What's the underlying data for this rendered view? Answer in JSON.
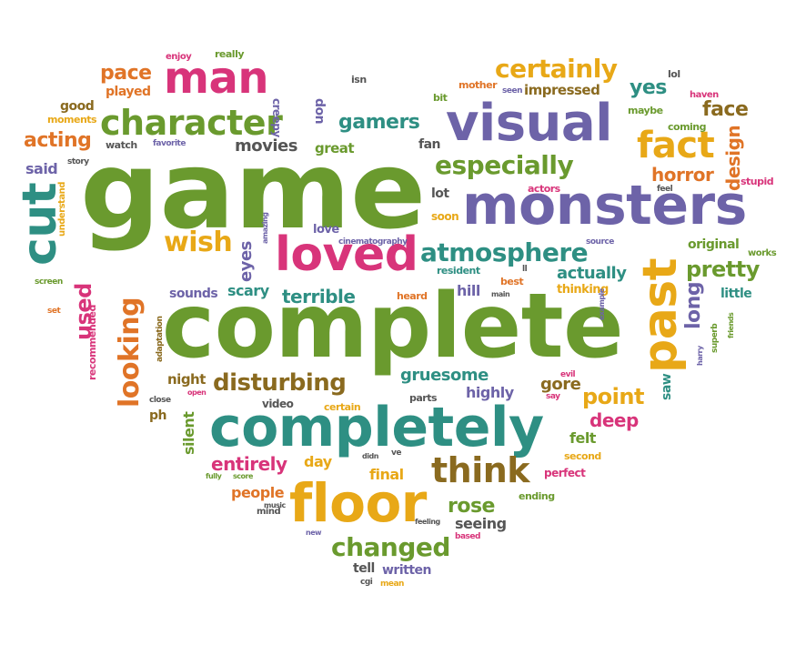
{
  "colors": {
    "green": "#6a9a2e",
    "purple": "#6d63a8",
    "teal": "#2e8f83",
    "magenta": "#d8347a",
    "orange": "#e07427",
    "yellow": "#e8a817",
    "brown": "#8a6a1f",
    "gray": "#555555"
  },
  "words": [
    {
      "text": "game",
      "color": "green"
    },
    {
      "text": "complete",
      "color": "green"
    },
    {
      "text": "completely",
      "color": "teal"
    },
    {
      "text": "monsters",
      "color": "purple"
    },
    {
      "text": "visual",
      "color": "purple"
    },
    {
      "text": "past",
      "color": "yellow"
    },
    {
      "text": "floor",
      "color": "yellow"
    },
    {
      "text": "loved",
      "color": "magenta"
    },
    {
      "text": "man",
      "color": "magenta"
    },
    {
      "text": "cut",
      "color": "teal"
    },
    {
      "text": "character",
      "color": "green"
    },
    {
      "text": "atmosphere",
      "color": "teal"
    },
    {
      "text": "especially",
      "color": "green"
    },
    {
      "text": "fact",
      "color": "yellow"
    },
    {
      "text": "certainly",
      "color": "yellow"
    },
    {
      "text": "think",
      "color": "brown"
    },
    {
      "text": "looking",
      "color": "orange"
    },
    {
      "text": "wish",
      "color": "yellow"
    },
    {
      "text": "disturbing",
      "color": "brown"
    },
    {
      "text": "changed",
      "color": "green"
    },
    {
      "text": "pretty",
      "color": "green"
    },
    {
      "text": "point",
      "color": "yellow"
    },
    {
      "text": "gamers",
      "color": "teal"
    },
    {
      "text": "acting",
      "color": "orange"
    },
    {
      "text": "pace",
      "color": "orange"
    },
    {
      "text": "yes",
      "color": "teal"
    },
    {
      "text": "face",
      "color": "brown"
    },
    {
      "text": "horror",
      "color": "orange"
    },
    {
      "text": "design",
      "color": "orange"
    },
    {
      "text": "long",
      "color": "purple"
    },
    {
      "text": "used",
      "color": "magenta"
    },
    {
      "text": "eyes",
      "color": "purple"
    },
    {
      "text": "movies",
      "color": "gray"
    },
    {
      "text": "terrible",
      "color": "teal"
    },
    {
      "text": "scary",
      "color": "teal"
    },
    {
      "text": "gruesome",
      "color": "teal"
    },
    {
      "text": "deep",
      "color": "magenta"
    },
    {
      "text": "gore",
      "color": "brown"
    },
    {
      "text": "rose",
      "color": "green"
    },
    {
      "text": "entirely",
      "color": "magenta"
    },
    {
      "text": "silent",
      "color": "green"
    },
    {
      "text": "actually",
      "color": "teal"
    },
    {
      "text": "impressed",
      "color": "brown"
    },
    {
      "text": "played",
      "color": "orange"
    },
    {
      "text": "good",
      "color": "brown"
    },
    {
      "text": "said",
      "color": "purple"
    },
    {
      "text": "great",
      "color": "green"
    },
    {
      "text": "hill",
      "color": "purple"
    },
    {
      "text": "lot",
      "color": "gray"
    },
    {
      "text": "fan",
      "color": "gray"
    },
    {
      "text": "felt",
      "color": "green"
    },
    {
      "text": "highly",
      "color": "purple"
    },
    {
      "text": "day",
      "color": "yellow"
    },
    {
      "text": "people",
      "color": "orange"
    },
    {
      "text": "final",
      "color": "yellow"
    },
    {
      "text": "seeing",
      "color": "gray"
    },
    {
      "text": "tell",
      "color": "gray"
    },
    {
      "text": "written",
      "color": "purple"
    },
    {
      "text": "original",
      "color": "green"
    },
    {
      "text": "little",
      "color": "teal"
    },
    {
      "text": "saw",
      "color": "teal"
    },
    {
      "text": "night",
      "color": "brown"
    },
    {
      "text": "sounds",
      "color": "purple"
    },
    {
      "text": "understand",
      "color": "yellow"
    },
    {
      "text": "recommended",
      "color": "magenta"
    },
    {
      "text": "creepy",
      "color": "purple"
    },
    {
      "text": "don",
      "color": "purple"
    },
    {
      "text": "video",
      "color": "gray"
    },
    {
      "text": "ph",
      "color": "brown"
    },
    {
      "text": "love",
      "color": "purple"
    },
    {
      "text": "soon",
      "color": "yellow"
    },
    {
      "text": "thinking",
      "color": "yellow"
    },
    {
      "text": "perfect",
      "color": "magenta"
    },
    {
      "text": "second",
      "color": "yellow"
    },
    {
      "text": "ending",
      "color": "green"
    },
    {
      "text": "certain",
      "color": "yellow"
    },
    {
      "text": "parts",
      "color": "gray"
    },
    {
      "text": "heard",
      "color": "orange"
    },
    {
      "text": "resident",
      "color": "teal"
    },
    {
      "text": "best",
      "color": "orange"
    },
    {
      "text": "maybe",
      "color": "green"
    },
    {
      "text": "coming",
      "color": "green"
    },
    {
      "text": "stupid",
      "color": "magenta"
    },
    {
      "text": "works",
      "color": "green"
    },
    {
      "text": "mother",
      "color": "orange"
    },
    {
      "text": "bit",
      "color": "green"
    },
    {
      "text": "isn",
      "color": "gray"
    },
    {
      "text": "seen",
      "color": "purple"
    },
    {
      "text": "lol",
      "color": "gray"
    },
    {
      "text": "haven",
      "color": "magenta"
    },
    {
      "text": "enjoy",
      "color": "magenta"
    },
    {
      "text": "really",
      "color": "green"
    },
    {
      "text": "moments",
      "color": "yellow"
    },
    {
      "text": "watch",
      "color": "gray"
    },
    {
      "text": "favorite",
      "color": "purple"
    },
    {
      "text": "story",
      "color": "gray"
    },
    {
      "text": "actors",
      "color": "magenta"
    },
    {
      "text": "feel",
      "color": "gray"
    },
    {
      "text": "source",
      "color": "purple"
    },
    {
      "text": "amazing",
      "color": "purple"
    },
    {
      "text": "cinematography",
      "color": "purple"
    },
    {
      "text": "screen",
      "color": "green"
    },
    {
      "text": "set",
      "color": "orange"
    },
    {
      "text": "adaptation",
      "color": "brown"
    },
    {
      "text": "close",
      "color": "gray"
    },
    {
      "text": "open",
      "color": "magenta"
    },
    {
      "text": "music",
      "color": "gray"
    },
    {
      "text": "mind",
      "color": "gray"
    },
    {
      "text": "fully",
      "color": "green"
    },
    {
      "text": "score",
      "color": "green"
    },
    {
      "text": "didn",
      "color": "gray"
    },
    {
      "text": "ve",
      "color": "gray"
    },
    {
      "text": "new",
      "color": "purple"
    },
    {
      "text": "feeling",
      "color": "gray"
    },
    {
      "text": "based",
      "color": "magenta"
    },
    {
      "text": "cgi",
      "color": "gray"
    },
    {
      "text": "mean",
      "color": "yellow"
    },
    {
      "text": "ll",
      "color": "gray"
    },
    {
      "text": "main",
      "color": "gray"
    },
    {
      "text": "say",
      "color": "magenta"
    },
    {
      "text": "evil",
      "color": "magenta"
    },
    {
      "text": "example",
      "color": "purple"
    },
    {
      "text": "harry",
      "color": "purple"
    },
    {
      "text": "superb",
      "color": "green"
    },
    {
      "text": "friends",
      "color": "green"
    }
  ]
}
